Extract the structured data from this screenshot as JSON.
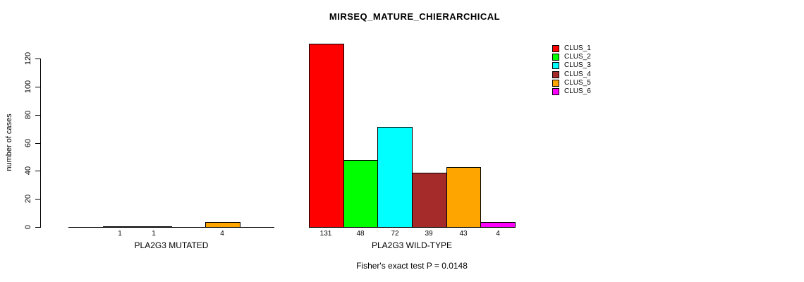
{
  "title": "MIRSEQ_MATURE_CHIERARCHICAL",
  "footer": "Fisher's exact test P = 0.0148",
  "y_axis": {
    "label": "number of cases",
    "ticks": [
      0,
      20,
      40,
      60,
      80,
      100,
      120
    ]
  },
  "legend": {
    "items": [
      {
        "label": "CLUS_1",
        "color": "#FF0000"
      },
      {
        "label": "CLUS_2",
        "color": "#00FF00"
      },
      {
        "label": "CLUS_3",
        "color": "#00FFFF"
      },
      {
        "label": "CLUS_4",
        "color": "#A52A2A"
      },
      {
        "label": "CLUS_5",
        "color": "#FFA500"
      },
      {
        "label": "CLUS_6",
        "color": "#FF00FF"
      }
    ]
  },
  "chart_data": {
    "type": "bar",
    "title": "MIRSEQ_MATURE_CHIERARCHICAL",
    "xlabel": "",
    "ylabel": "number of cases",
    "ylim": [
      0,
      131
    ],
    "yticks": [
      0,
      20,
      40,
      60,
      80,
      100,
      120
    ],
    "grid": false,
    "legend_position": "top-right",
    "categories": [
      "PLA2G3 MUTATED",
      "PLA2G3 WILD-TYPE"
    ],
    "series": [
      {
        "name": "CLUS_1",
        "color": "#FF0000",
        "values": [
          0,
          131
        ]
      },
      {
        "name": "CLUS_2",
        "color": "#00FF00",
        "values": [
          1,
          48
        ]
      },
      {
        "name": "CLUS_3",
        "color": "#00FFFF",
        "values": [
          1,
          72
        ]
      },
      {
        "name": "CLUS_4",
        "color": "#A52A2A",
        "values": [
          0,
          39
        ]
      },
      {
        "name": "CLUS_5",
        "color": "#FFA500",
        "values": [
          4,
          43
        ]
      },
      {
        "name": "CLUS_6",
        "color": "#FF00FF",
        "values": [
          0,
          4
        ]
      }
    ],
    "bar_value_labels": {
      "PLA2G3 MUTATED": [
        null,
        1,
        1,
        null,
        4,
        null
      ],
      "PLA2G3 WILD-TYPE": [
        131,
        48,
        72,
        39,
        43,
        4
      ]
    },
    "annotation": "Fisher's exact test P = 0.0148"
  }
}
